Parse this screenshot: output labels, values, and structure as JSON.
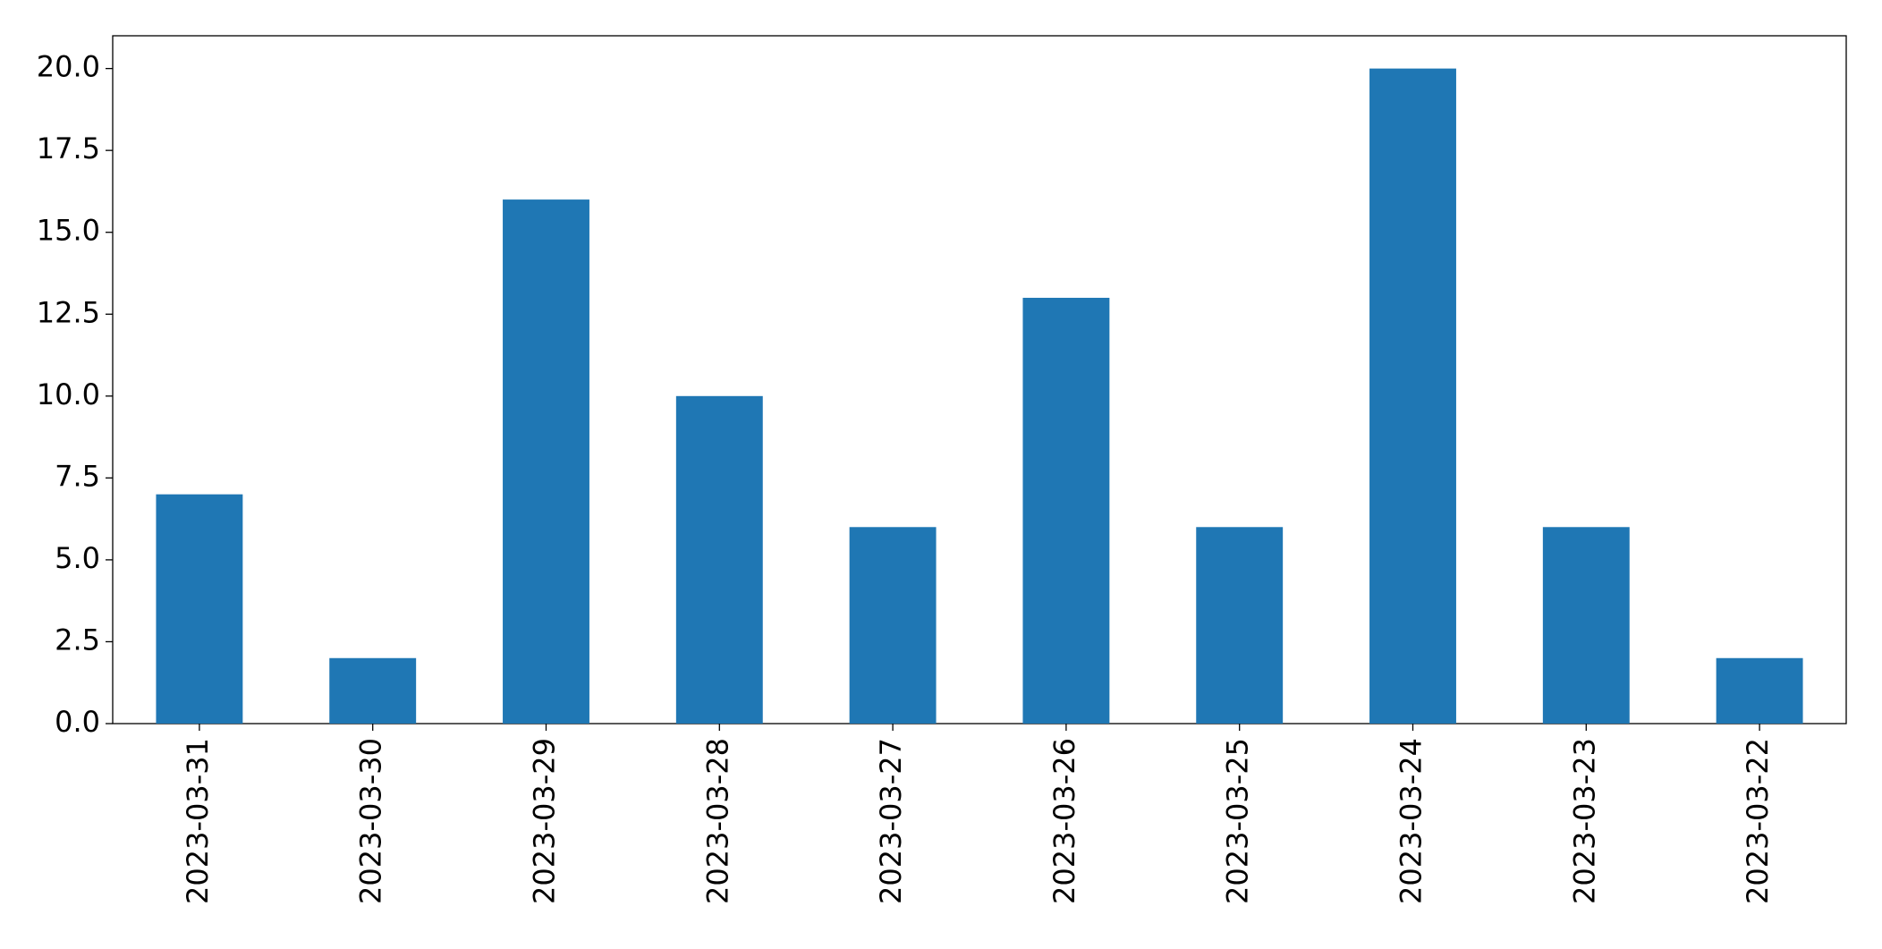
{
  "chart_data": {
    "type": "bar",
    "categories": [
      "2023-03-31",
      "2023-03-30",
      "2023-03-29",
      "2023-03-28",
      "2023-03-27",
      "2023-03-26",
      "2023-03-25",
      "2023-03-24",
      "2023-03-23",
      "2023-03-22"
    ],
    "values": [
      7,
      2,
      16,
      10,
      6,
      13,
      6,
      20,
      6,
      2
    ],
    "color": "#1f77b4",
    "ylim": [
      0,
      21
    ],
    "yticks": [
      {
        "value": 0,
        "label": "0.0"
      },
      2.5,
      {
        "value": 5,
        "label": "5.0"
      },
      7.5,
      {
        "value": 10,
        "label": "10.0"
      },
      12.5,
      {
        "value": 15,
        "label": "15.0"
      },
      17.5,
      {
        "value": 20,
        "label": "20.0"
      }
    ],
    "grid": false
  }
}
